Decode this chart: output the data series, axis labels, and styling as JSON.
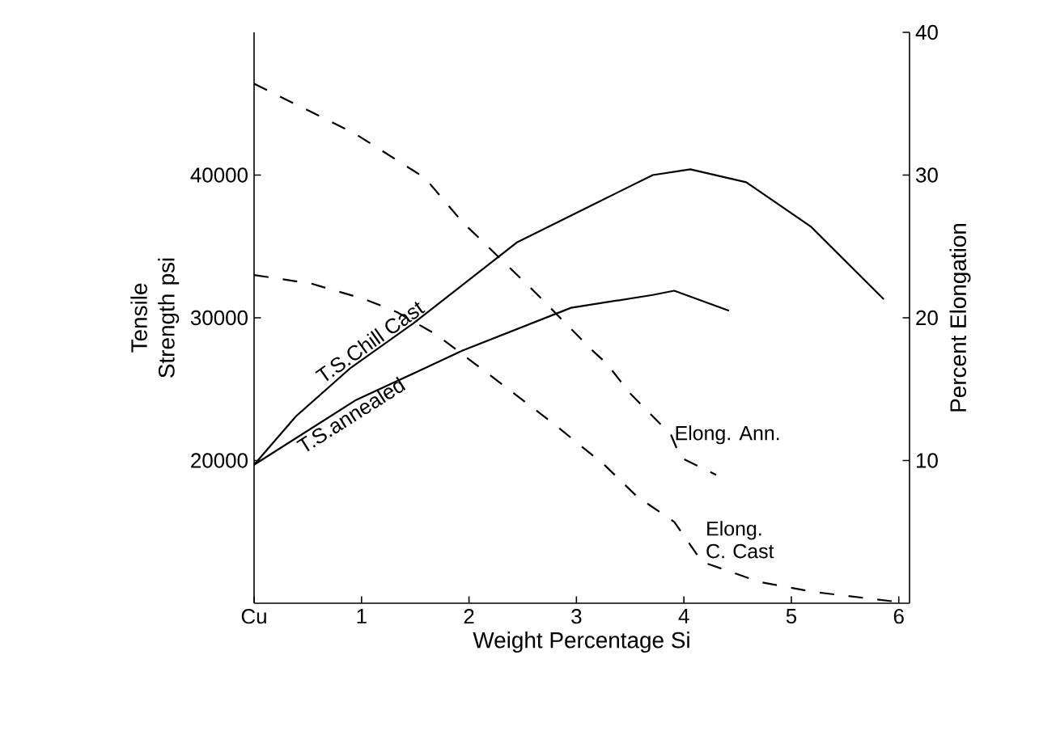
{
  "chart_data": {
    "type": "line",
    "xlabel": "Weight Percentage Si",
    "ylabel": "Tensile Strength psi",
    "y2label": "Percent Elongation",
    "xlim": [
      0,
      6.1
    ],
    "xticks": [
      {
        "value": 0,
        "label": "Cu"
      },
      1,
      2,
      3,
      4,
      5,
      6
    ],
    "ylim": [
      10000,
      50000
    ],
    "yticks": [
      20000,
      30000,
      40000
    ],
    "y2lim": [
      0,
      40
    ],
    "y2ticks": [
      10,
      20,
      30,
      40
    ],
    "grid": false,
    "legend": false,
    "marker": "none",
    "series": [
      {
        "name": "T.S.Chill Cast",
        "color": "#000000",
        "line_style": "solid",
        "x": [
          0,
          0.39,
          0.9,
          1.48,
          2.45,
          3.71,
          4.06,
          4.58,
          5.18,
          5.86
        ],
        "values": [
          19700,
          23100,
          26500,
          29600,
          35300,
          40000,
          40400,
          39500,
          36400,
          31300
        ]
      },
      {
        "name": "T.S.annealed",
        "color": "#000000",
        "line_style": "solid",
        "x": [
          0,
          0.94,
          1.94,
          2.95,
          3.71,
          3.91,
          4.42
        ],
        "values": [
          19700,
          24200,
          27700,
          30700,
          31600,
          31900,
          30500
        ]
      },
      {
        "name": "Elong. Ann.",
        "color": "#000000",
        "line_style": "dashed",
        "axis": "y2",
        "x": [
          0,
          0.94,
          1.59,
          1.94,
          2.6,
          3.15,
          3.28,
          3.5,
          3.88,
          3.97,
          4.3
        ],
        "values": [
          36.4,
          32.9,
          29.8,
          26.7,
          21.9,
          17.7,
          16.8,
          14.7,
          11.8,
          10.2,
          9
        ]
      },
      {
        "name": "Elong. C. Cast",
        "color": "#000000",
        "line_style": "dashed",
        "axis": "y2",
        "x": [
          0,
          0.53,
          1.03,
          1.33,
          1.7,
          2.35,
          2.8,
          3.26,
          3.56,
          3.91,
          4.17,
          4.7,
          5.2,
          5.98
        ],
        "values": [
          23,
          22.4,
          21.3,
          20.4,
          18.8,
          15.1,
          12.5,
          9.7,
          7.5,
          5.7,
          2.9,
          1.5,
          0.8,
          0.1
        ]
      }
    ]
  }
}
